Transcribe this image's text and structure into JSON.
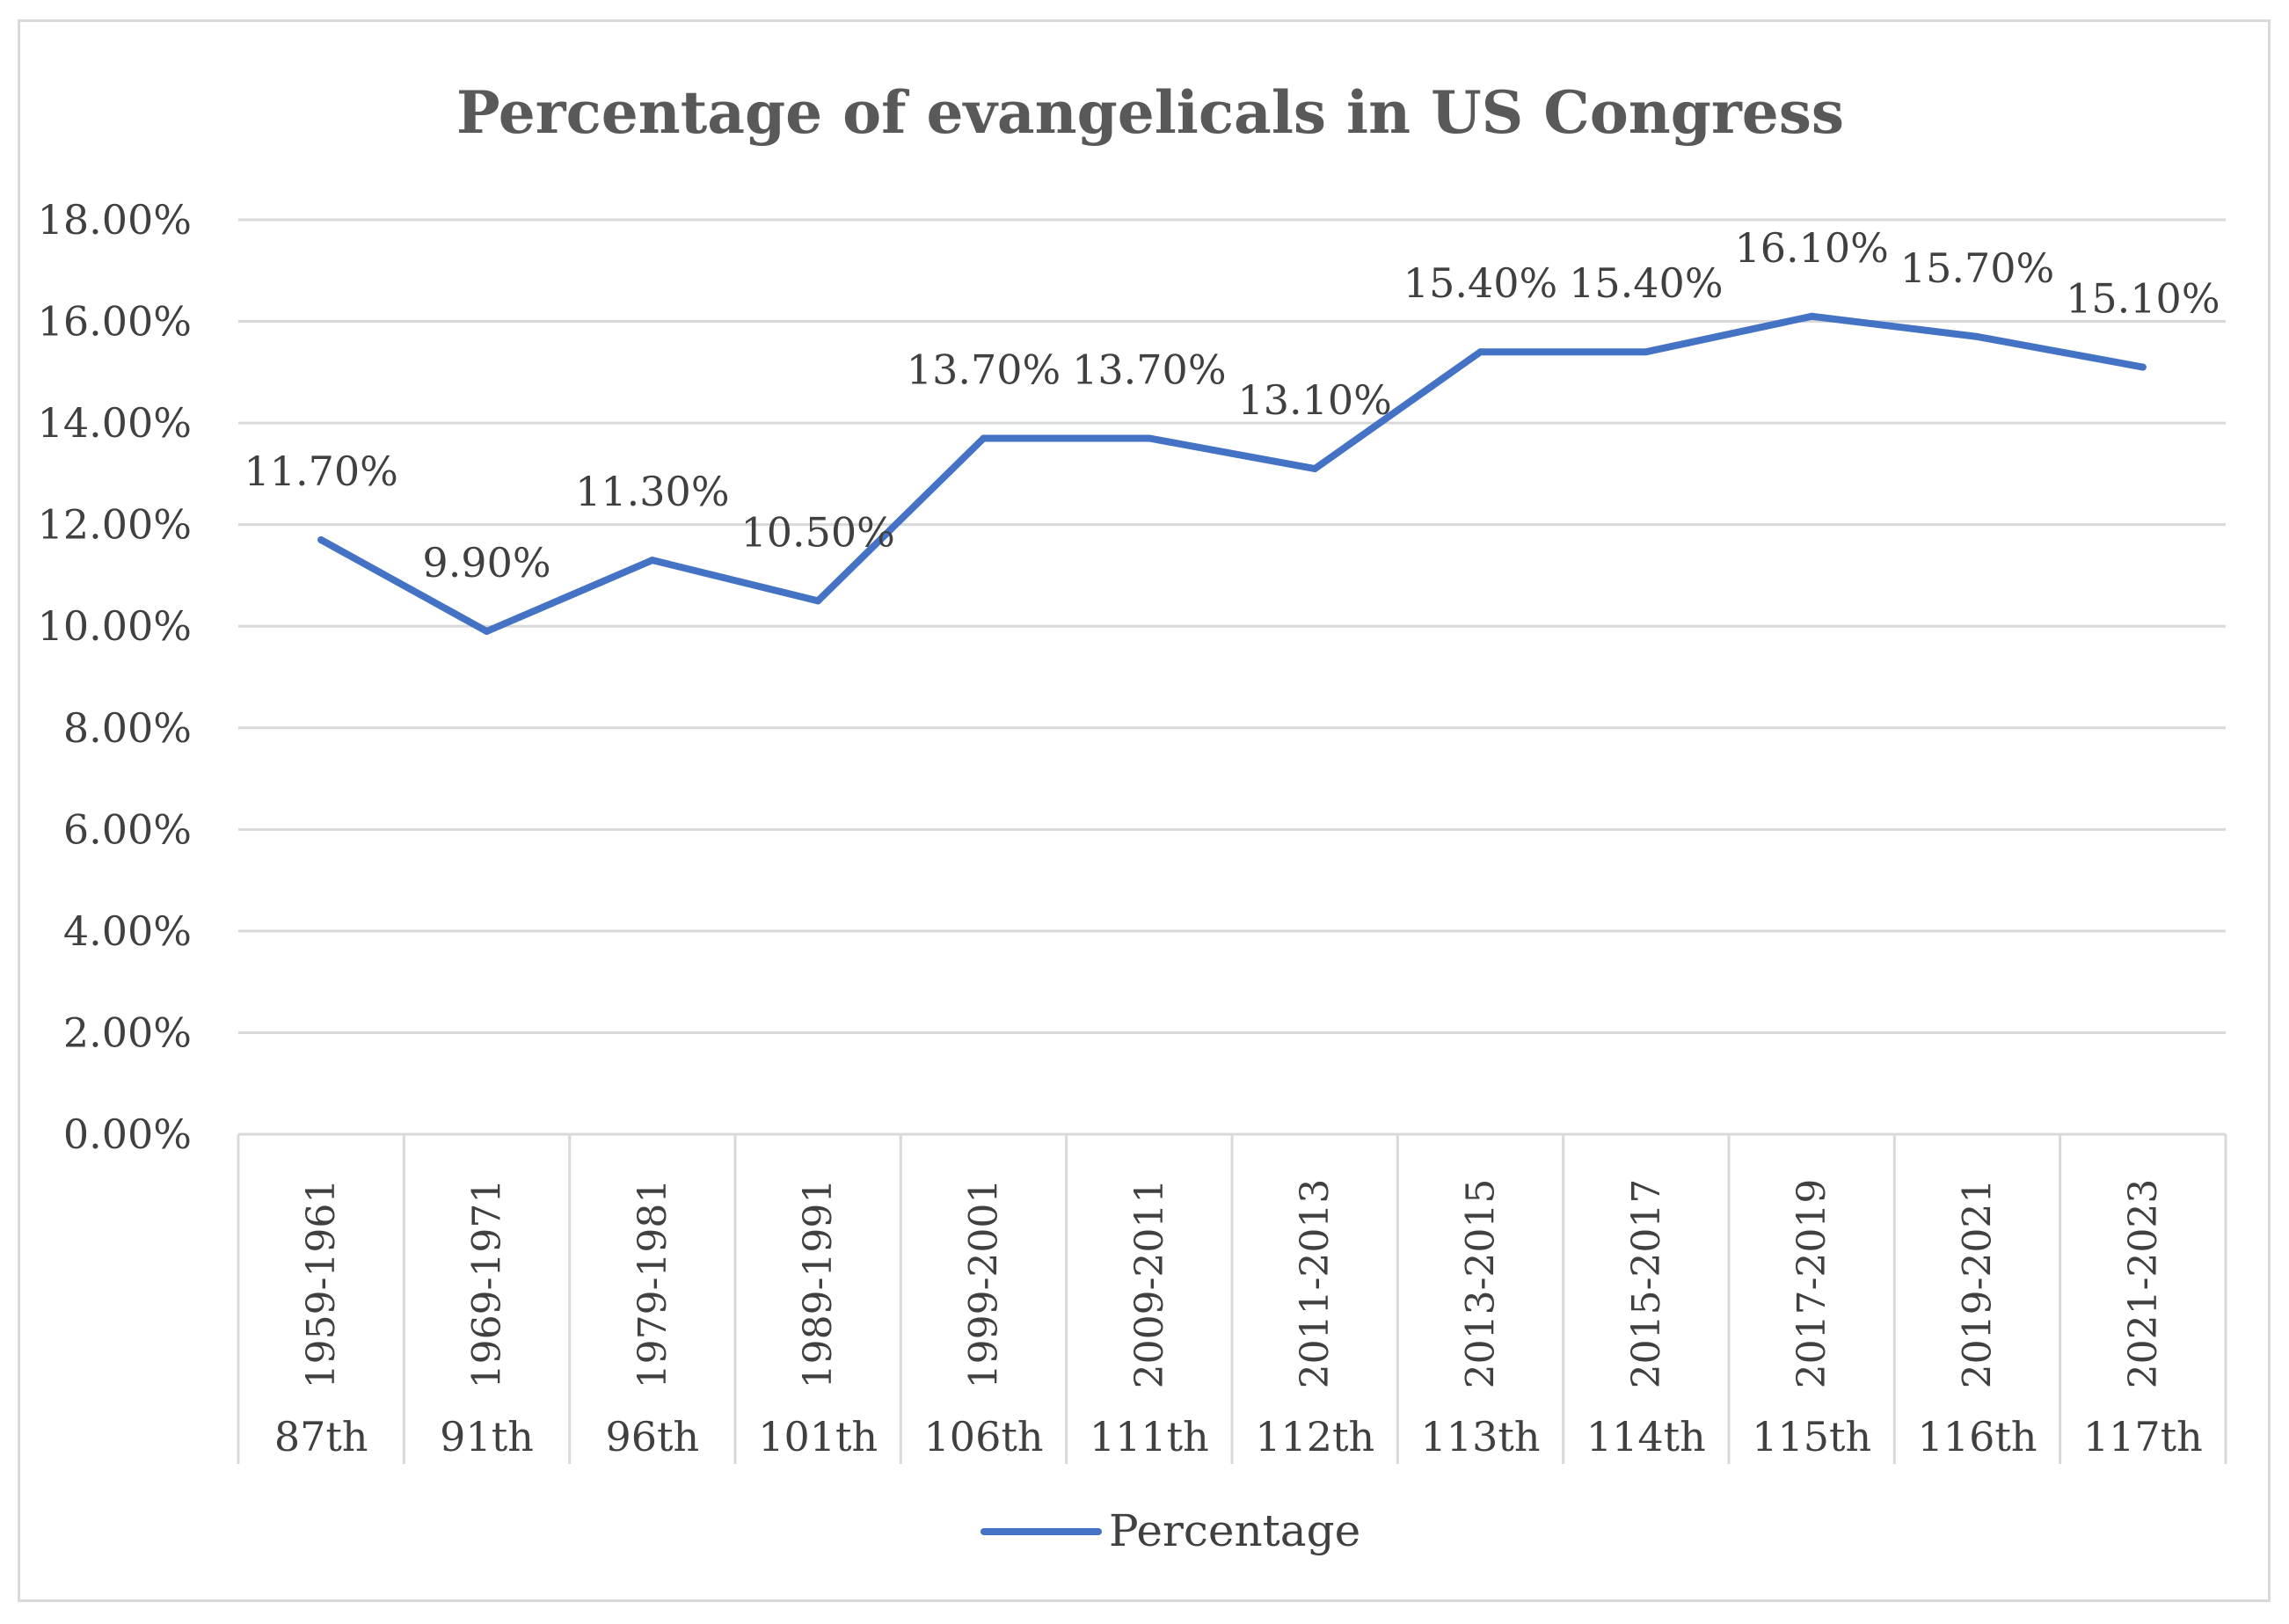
{
  "chart_data": {
    "type": "line",
    "title": "Percentage of evangelicals in US Congress",
    "xlabel": "",
    "ylabel": "",
    "ylim": [
      0,
      18
    ],
    "y_ticks": [
      "0.00%",
      "2.00%",
      "4.00%",
      "6.00%",
      "8.00%",
      "10.00%",
      "12.00%",
      "14.00%",
      "16.00%",
      "18.00%"
    ],
    "grid": true,
    "legend_position": "bottom",
    "categories": [
      {
        "years": "1959-1961",
        "congress": "87th"
      },
      {
        "years": "1969-1971",
        "congress": "91th"
      },
      {
        "years": "1979-1981",
        "congress": "96th"
      },
      {
        "years": "1989-1991",
        "congress": "101th"
      },
      {
        "years": "1999-2001",
        "congress": "106th"
      },
      {
        "years": "2009-2011",
        "congress": "111th"
      },
      {
        "years": "2011-2013",
        "congress": "112th"
      },
      {
        "years": "2013-2015",
        "congress": "113th"
      },
      {
        "years": "2015-2017",
        "congress": "114th"
      },
      {
        "years": "2017-2019",
        "congress": "115th"
      },
      {
        "years": "2019-2021",
        "congress": "116th"
      },
      {
        "years": "2021-2023",
        "congress": "117th"
      }
    ],
    "series": [
      {
        "name": "Percentage",
        "color": "#4472c4",
        "values": [
          11.7,
          9.9,
          11.3,
          10.5,
          13.7,
          13.7,
          13.1,
          15.4,
          15.4,
          16.1,
          15.7,
          15.1
        ],
        "data_labels": [
          "11.70%",
          "9.90%",
          "11.30%",
          "10.50%",
          "13.70%",
          "13.70%",
          "13.10%",
          "15.40%",
          "15.40%",
          "16.10%",
          "15.70%",
          "15.10%"
        ]
      }
    ]
  }
}
